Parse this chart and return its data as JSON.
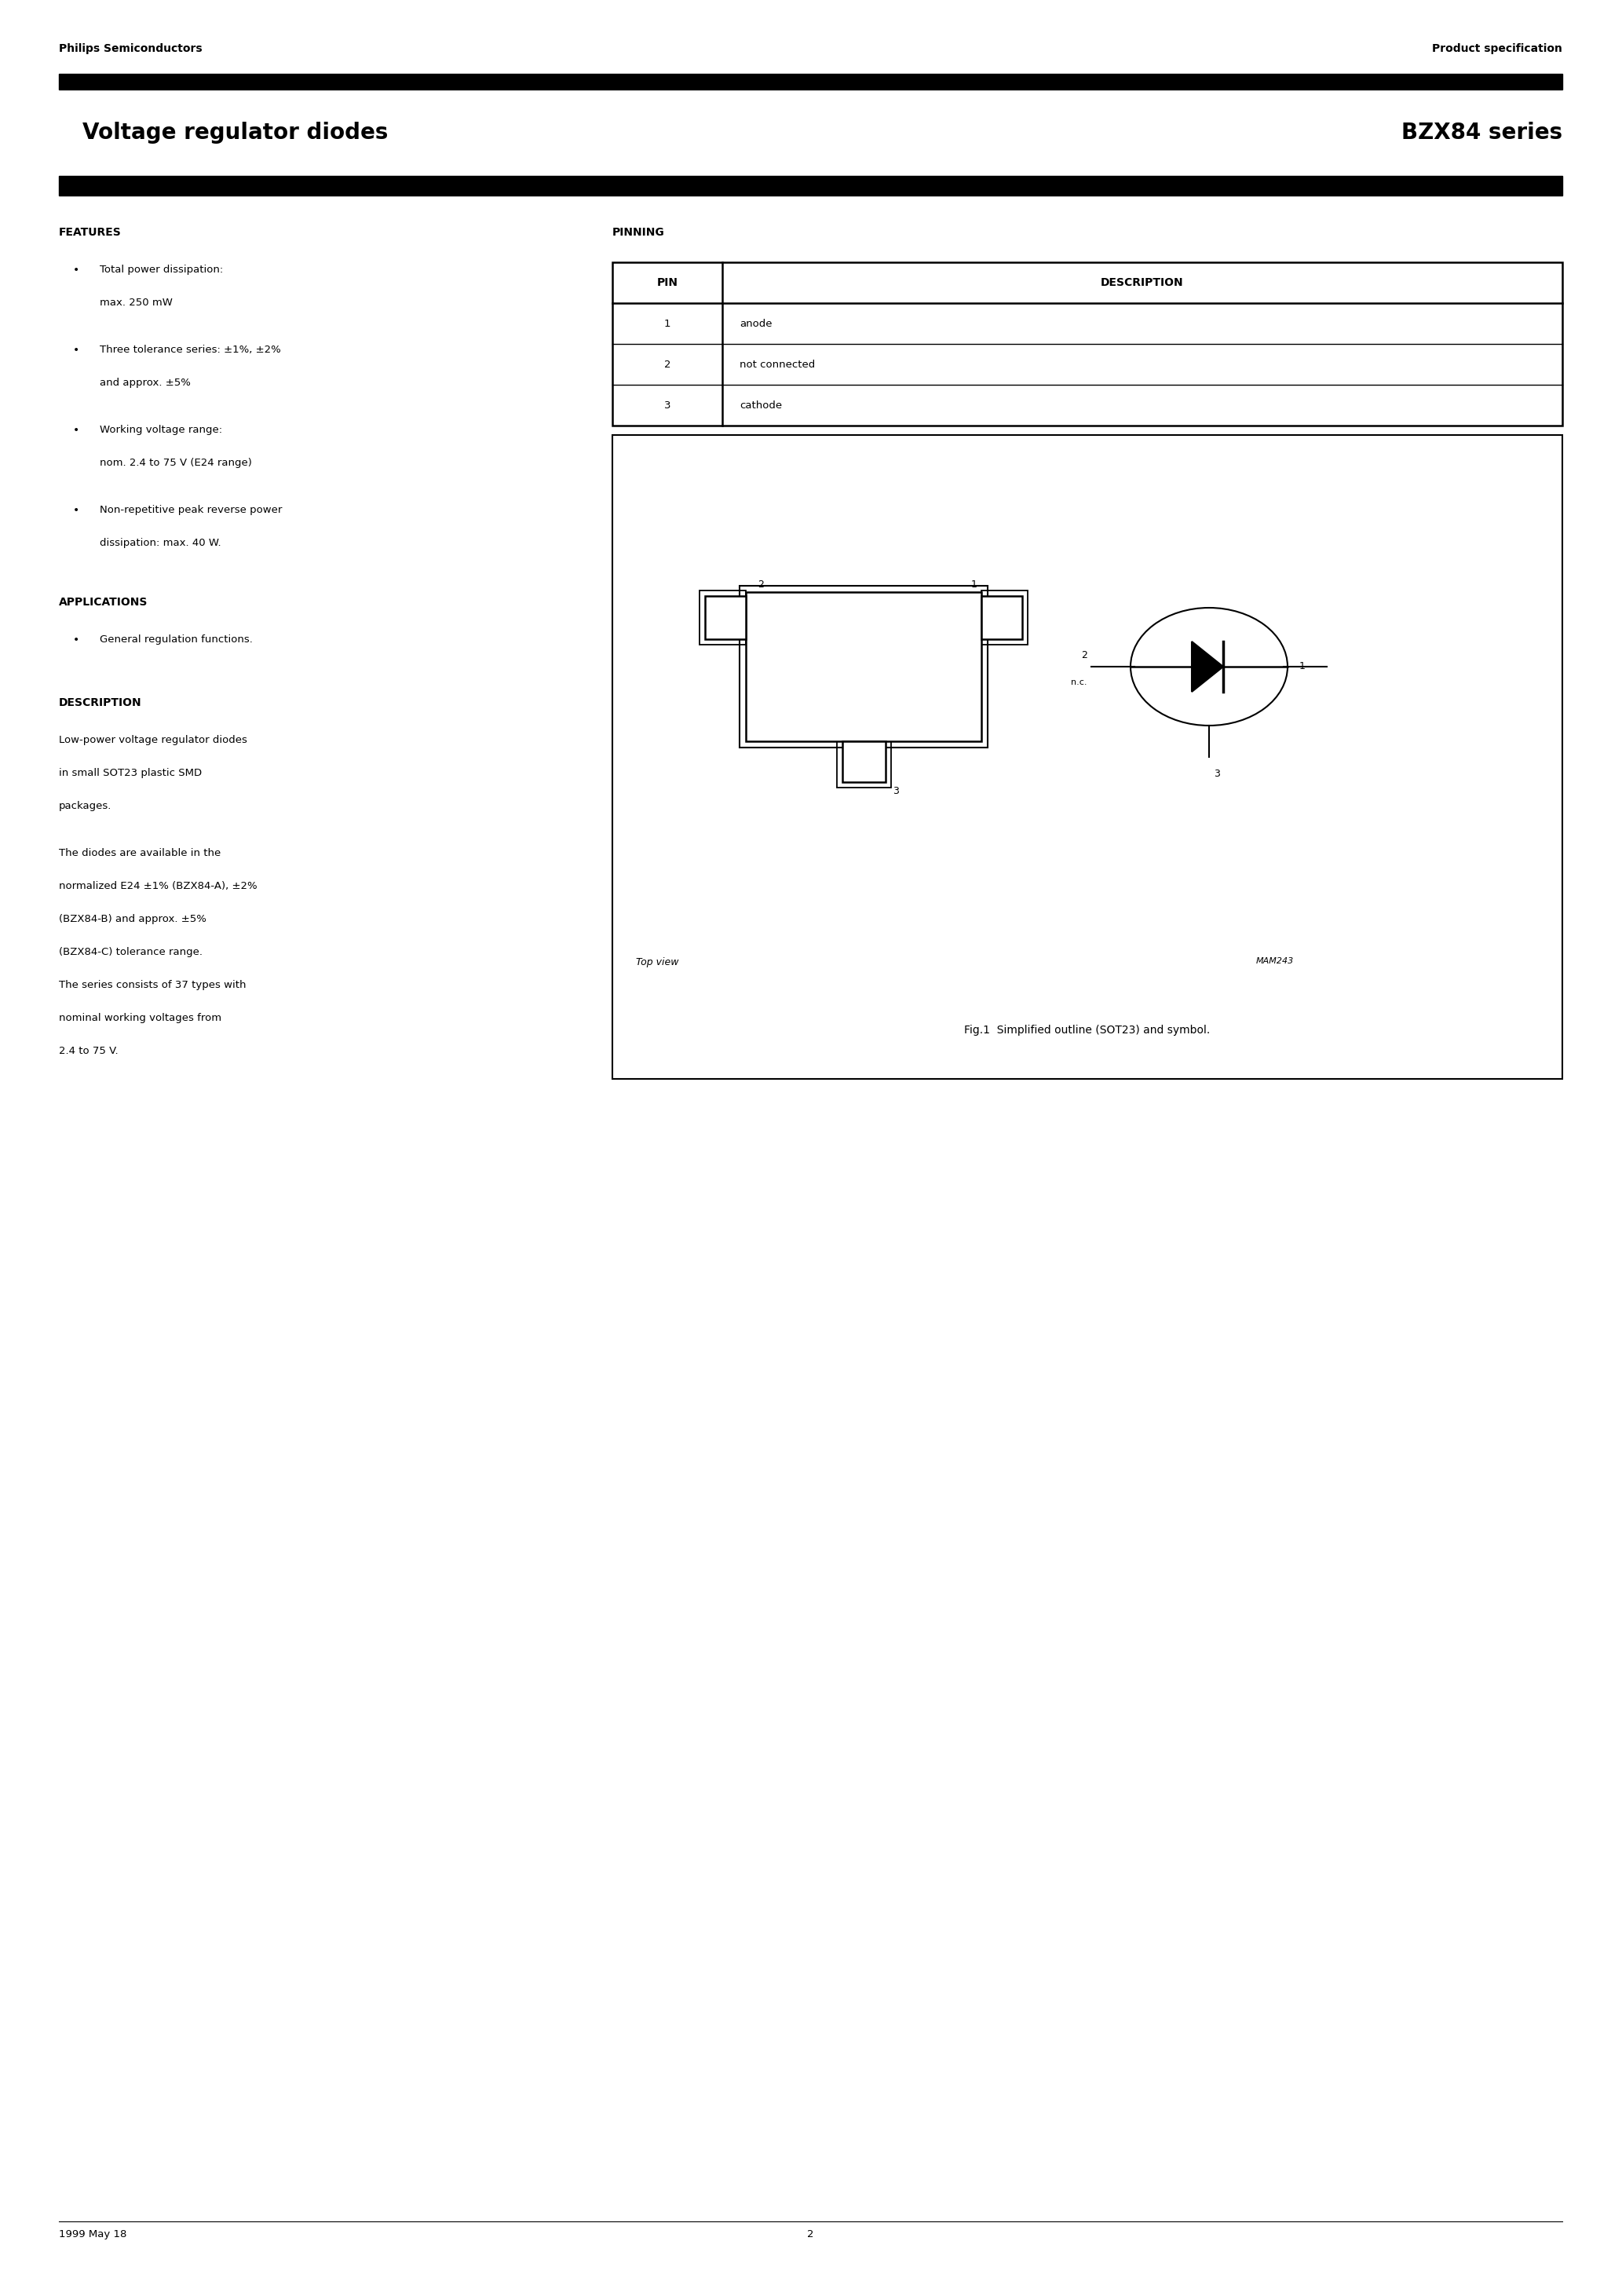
{
  "page_title_left": "Voltage regulator diodes",
  "page_title_right": "BZX84 series",
  "header_left": "Philips Semiconductors",
  "header_right": "Product specification",
  "features_title": "FEATURES",
  "features": [
    [
      "Total power dissipation:",
      "max. 250 mW"
    ],
    [
      "Three tolerance series: ±1%, ±2%",
      "and approx. ±5%"
    ],
    [
      "Working voltage range:",
      "nom. 2.4 to 75 V (E24 range)"
    ],
    [
      "Non-repetitive peak reverse power",
      "dissipation: max. 40 W."
    ]
  ],
  "applications_title": "APPLICATIONS",
  "applications": [
    "General regulation functions."
  ],
  "description_title": "DESCRIPTION",
  "description_paras": [
    [
      "Low-power voltage regulator diodes",
      "in small SOT23 plastic SMD",
      "packages."
    ],
    [
      "The diodes are available in the",
      "normalized E24 ±1% (BZX84-A), ±2%",
      "(BZX84-B) and approx. ±5%",
      "(BZX84-C) tolerance range.",
      "The series consists of 37 types with",
      "nominal working voltages from",
      "2.4 to 75 V."
    ]
  ],
  "pinning_title": "PINNING",
  "pin_header": [
    "PIN",
    "DESCRIPTION"
  ],
  "pins": [
    [
      "1",
      "anode"
    ],
    [
      "2",
      "not connected"
    ],
    [
      "3",
      "cathode"
    ]
  ],
  "fig_caption": "Fig.1  Simplified outline (SOT23) and symbol.",
  "footer_left": "1999 May 18",
  "footer_center": "2",
  "bg_color": "#ffffff",
  "text_color": "#000000",
  "bar_color": "#000000"
}
